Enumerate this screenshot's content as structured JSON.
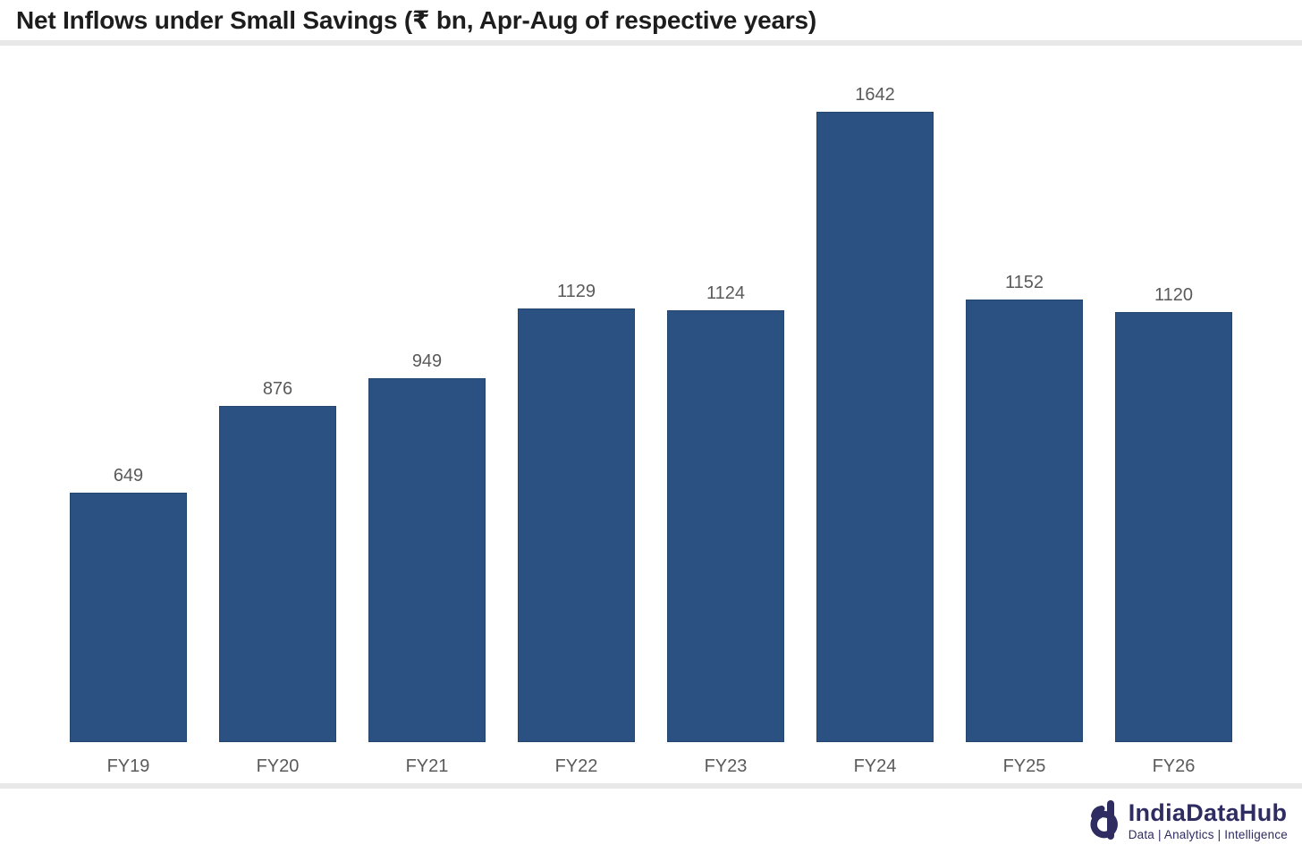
{
  "title": "Net Inflows under Small Savings (₹ bn, Apr-Aug of respective years)",
  "chart_data": {
    "type": "bar",
    "categories": [
      "FY19",
      "FY20",
      "FY21",
      "FY22",
      "FY23",
      "FY24",
      "FY25",
      "FY26"
    ],
    "values": [
      649,
      876,
      949,
      1129,
      1124,
      1642,
      1152,
      1120
    ],
    "title": "Net Inflows under Small Savings (₹ bn, Apr-Aug of respective years)",
    "xlabel": "",
    "ylabel": "",
    "ylim": [
      0,
      1700
    ],
    "grid": false,
    "legend": false,
    "data_labels": true,
    "bar_color": "#2b5183",
    "bar_border_color": "#24466f",
    "label_color": "#5a5a5a"
  },
  "footer": {
    "logo_text": "IndiaDataHub",
    "tagline": "Data | Analytics | Intelligence",
    "logo_color": "#2e2c60",
    "logo_icon": "indiadatahub-d-icon"
  }
}
